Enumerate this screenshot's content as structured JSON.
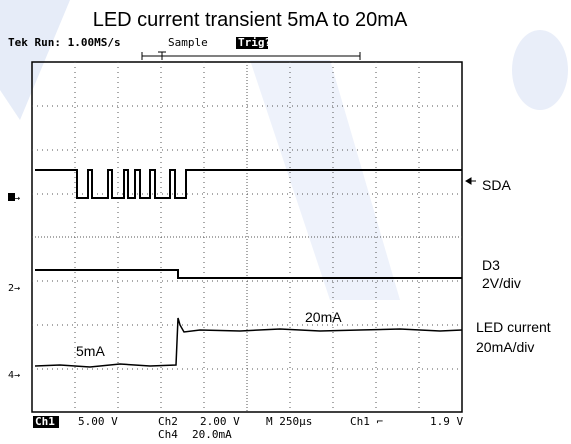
{
  "title": "LED current transient 5mA to 20mA",
  "header": {
    "run": "Tek Run: 1.00MS/s",
    "mode": "Sample",
    "trigger": "Trig?"
  },
  "markers": {
    "ch1": "1→",
    "ch2": "2→",
    "ch4": "4→"
  },
  "labels": {
    "sda": "SDA",
    "d3": "D3",
    "d3_scale": "2V/div",
    "high": "20mA",
    "low": "5mA",
    "led": "LED current",
    "led_scale": "20mA/div"
  },
  "status": {
    "ch1": "Ch1",
    "ch1_scale": "5.00 V",
    "ch2": "Ch2",
    "ch2_scale": "2.00 V",
    "time": "M 250µs",
    "trig_src": "Ch1 ⌐",
    "trig_level": "1.9 V",
    "ch4": "Ch4",
    "ch4_scale": "20.0mA"
  }
}
